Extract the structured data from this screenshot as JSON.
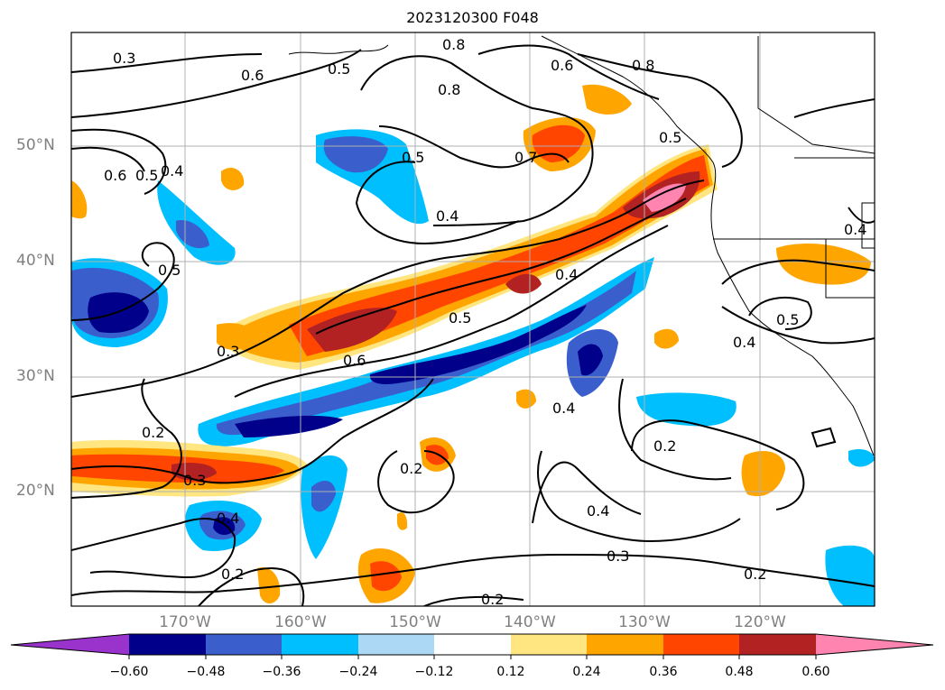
{
  "title": "2023120300 F048",
  "lat_labels": [
    "50°N",
    "40°N",
    "30°N",
    "20°N"
  ],
  "lon_labels": [
    "170°W",
    "160°W",
    "150°W",
    "140°W",
    "130°W",
    "120°W"
  ],
  "colorbar": {
    "colors": [
      "#9933cc",
      "#00008b",
      "#3a5fcd",
      "#00bfff",
      "#add8f5",
      "#ffffff",
      "#ffe680",
      "#ffa500",
      "#ff4500",
      "#b22222",
      "#ff85b0"
    ],
    "tick_labels": [
      "−0.60",
      "−0.48",
      "−0.36",
      "−0.24",
      "−0.12",
      "0.12",
      "0.24",
      "0.36",
      "0.48",
      "0.60"
    ]
  },
  "contour_labels": [
    "0.3",
    "0.6",
    "0.5",
    "0.8",
    "0.6",
    "0.8",
    "0.8",
    "0.6",
    "0.5",
    "0.4",
    "0.5",
    "0.7",
    "0.5",
    "0.4",
    "0.4",
    "0.5",
    "0.3",
    "0.6",
    "0.5",
    "0.4",
    "0.5",
    "0.4",
    "0.4",
    "0.2",
    "0.3",
    "0.4",
    "0.2",
    "0.2",
    "0.2",
    "0.4",
    "0.3",
    "0.2",
    "0.2"
  ]
}
